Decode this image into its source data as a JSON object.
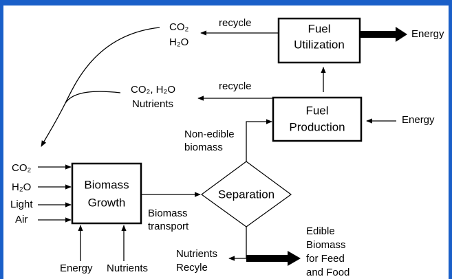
{
  "nodes": [
    {
      "label": [
        "Fuel",
        "Utilization"
      ]
    },
    {
      "label": [
        "Fuel",
        "Production"
      ]
    },
    {
      "label": [
        "Biomass",
        "Growth"
      ]
    },
    {
      "label": [
        "Separation"
      ]
    }
  ],
  "labels": {
    "recycle_top": "recycle",
    "co2_top": "CO₂",
    "h2o_top": "H₂O",
    "energy_out": "Energy",
    "recycle_mid": "recycle",
    "co2_h2o_mid": "CO₂, H₂O",
    "nutrients_mid": "Nutrients",
    "energy_in": "Energy",
    "non_edible": [
      "Non-edible",
      "biomass"
    ],
    "inputs": [
      "CO₂",
      "H₂O",
      "Light",
      "Air"
    ],
    "biomass_transport": [
      "Biomass",
      "transport"
    ],
    "bottom_energy": "Energy",
    "bottom_nutrients": "Nutrients",
    "nutrients_recycle": [
      "Nutrients",
      "Recyle"
    ],
    "edible": [
      "Edible",
      "Biomass",
      "for Feed",
      "and Food"
    ]
  }
}
